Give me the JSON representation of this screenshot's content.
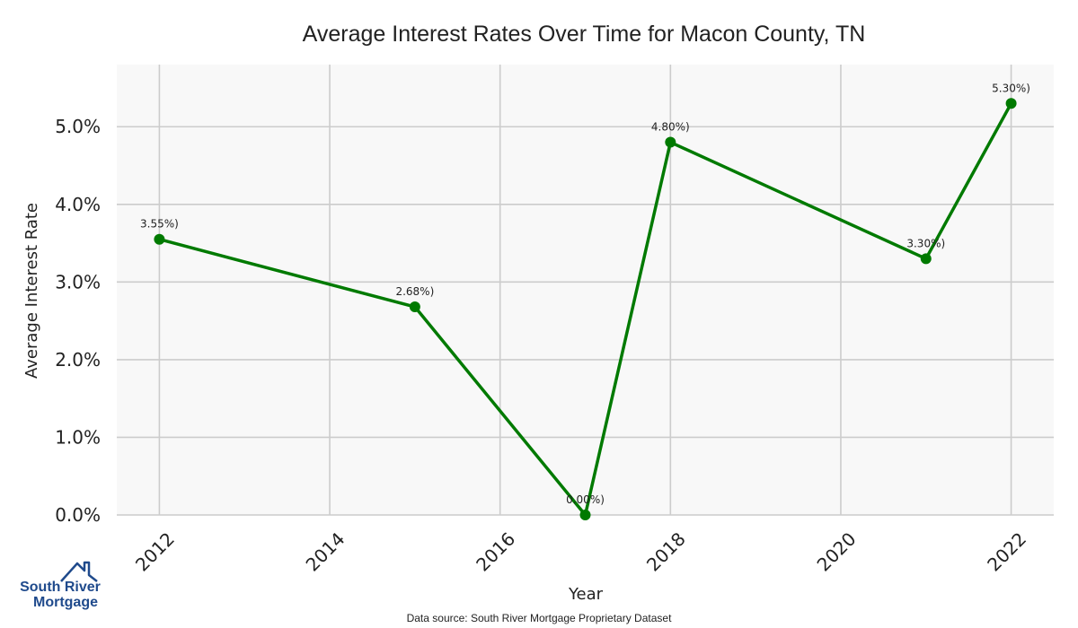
{
  "chart_data": {
    "type": "line",
    "title": "Average Interest Rates Over Time for Macon County, TN",
    "xlabel": "Year",
    "ylabel": "Average Interest Rate",
    "x": [
      2012,
      2015,
      2017,
      2018,
      2021,
      2022
    ],
    "series": [
      {
        "values": [
          3.55,
          2.68,
          0.0,
          4.8,
          3.3,
          5.3
        ],
        "color": "#007a00"
      }
    ],
    "data_labels": [
      "3.55%)",
      "2.68%)",
      "0.00%)",
      "4.80%)",
      "3.30%)",
      "5.30%)"
    ],
    "xticks": [
      2012,
      2014,
      2016,
      2018,
      2020,
      2022
    ],
    "xtick_labels": [
      "2012",
      "2014",
      "2016",
      "2018",
      "2020",
      "2022"
    ],
    "yticks": [
      0,
      1,
      2,
      3,
      4,
      5
    ],
    "ytick_labels": [
      "0.0%",
      "1.0%",
      "2.0%",
      "3.0%",
      "4.0%",
      "5.0%"
    ],
    "xlim": [
      2011.5,
      2022.5
    ],
    "ylim": [
      0,
      5.8
    ],
    "grid": true,
    "background": "#f8f8f8",
    "grid_color": "#cccccc"
  },
  "footer": {
    "source": "Data source: South River Mortgage Proprietary Dataset"
  },
  "logo": {
    "line1": "South River",
    "line2": "Mortgage",
    "color": "#1f4a8c"
  }
}
